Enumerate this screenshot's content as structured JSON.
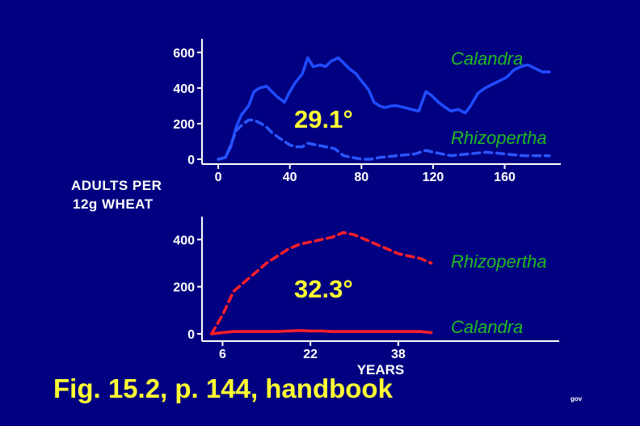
{
  "y_title_line1": "ADULTS PER",
  "y_title_line2": "12g WHEAT",
  "caption": "Fig. 15.2, p. 144, handbook",
  "credit": "gov",
  "colors": {
    "background": "#000080",
    "calandra_top": "#1f4cff",
    "rhizopertha_top": "#2a55ff",
    "series_bottom": "#ff1f2a",
    "temperature_label": "#ffff33",
    "series_label": "#22bb22",
    "axis": "#ffffff"
  },
  "chart_data": [
    {
      "type": "line",
      "temperature_label": "29.1°",
      "xlabel": "",
      "xlim": [
        -5,
        190
      ],
      "ylim": [
        0,
        640
      ],
      "x_ticks": [
        0,
        40,
        80,
        120,
        160
      ],
      "y_ticks": [
        0,
        200,
        400,
        600
      ],
      "series": [
        {
          "name": "Calandra",
          "style": "solid",
          "x": [
            0,
            4,
            7,
            10,
            13,
            17,
            20,
            23,
            27,
            30,
            33,
            37,
            40,
            43,
            47,
            50,
            53,
            57,
            60,
            63,
            67,
            70,
            73,
            77,
            80,
            84,
            87,
            90,
            93,
            97,
            100,
            104,
            108,
            112,
            116,
            119,
            123,
            127,
            130,
            134,
            138,
            141,
            145,
            149,
            153,
            157,
            161,
            165,
            169,
            173,
            177,
            181,
            185
          ],
          "y": [
            0,
            10,
            70,
            180,
            250,
            300,
            380,
            400,
            410,
            380,
            350,
            320,
            380,
            430,
            480,
            570,
            520,
            530,
            520,
            550,
            570,
            540,
            510,
            480,
            440,
            390,
            320,
            300,
            290,
            300,
            300,
            290,
            280,
            270,
            380,
            360,
            320,
            290,
            270,
            280,
            260,
            300,
            370,
            400,
            420,
            440,
            460,
            500,
            520,
            530,
            510,
            490,
            490
          ]
        },
        {
          "name": "Rhizopertha",
          "style": "dashed",
          "x": [
            0,
            4,
            7,
            10,
            14,
            17,
            20,
            24,
            27,
            30,
            34,
            37,
            40,
            44,
            47,
            50,
            55,
            60,
            65,
            70,
            75,
            80,
            85,
            90,
            100,
            110,
            116,
            120,
            130,
            140,
            150,
            160,
            170,
            180,
            185
          ],
          "y": [
            0,
            10,
            80,
            160,
            200,
            220,
            220,
            200,
            180,
            150,
            120,
            100,
            80,
            70,
            70,
            90,
            80,
            70,
            60,
            20,
            10,
            0,
            0,
            10,
            20,
            30,
            50,
            40,
            20,
            30,
            40,
            30,
            20,
            20,
            20
          ]
        }
      ],
      "series_labels": {
        "calandra": "Calandra",
        "rhizopertha": "Rhizopertha"
      }
    },
    {
      "type": "line",
      "temperature_label": "32.3°",
      "xlabel": "YEARS",
      "xlim": [
        3,
        67
      ],
      "ylim": [
        0,
        480
      ],
      "x_ticks": [
        6,
        22,
        38
      ],
      "y_ticks": [
        0,
        200,
        400
      ],
      "series": [
        {
          "name": "Rhizopertha",
          "style": "dashed",
          "x": [
            4,
            6,
            8,
            10,
            12,
            14,
            16,
            18,
            20,
            22,
            24,
            26,
            28,
            30,
            32,
            34,
            36,
            38,
            40,
            42,
            44
          ],
          "y": [
            0,
            80,
            180,
            220,
            260,
            300,
            330,
            360,
            380,
            390,
            400,
            410,
            430,
            420,
            400,
            380,
            360,
            340,
            330,
            320,
            300
          ]
        },
        {
          "name": "Calandra",
          "style": "solid",
          "x": [
            4,
            6,
            8,
            10,
            12,
            14,
            16,
            18,
            20,
            22,
            24,
            26,
            28,
            30,
            32,
            34,
            36,
            38,
            40,
            42,
            44
          ],
          "y": [
            0,
            5,
            10,
            10,
            10,
            10,
            10,
            12,
            14,
            12,
            12,
            10,
            10,
            10,
            10,
            10,
            10,
            10,
            10,
            10,
            5
          ]
        }
      ],
      "series_labels": {
        "rhizopertha": "Rhizopertha",
        "calandra": "Calandra"
      }
    }
  ]
}
